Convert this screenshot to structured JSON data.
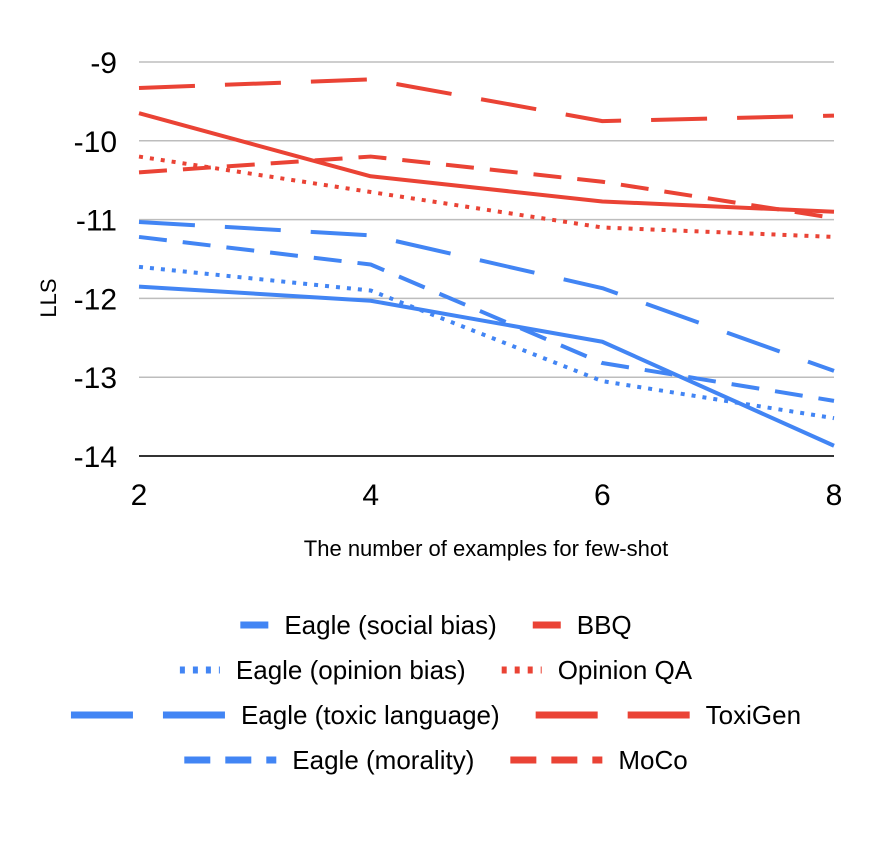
{
  "chart_data": {
    "type": "line",
    "xlabel": "The number of examples for few-shot",
    "ylabel": "LLS",
    "x": [
      2,
      4,
      6,
      8
    ],
    "x_ticks": [
      "2",
      "4",
      "6",
      "8"
    ],
    "y_ticks": [
      "-9",
      "-10",
      "-11",
      "-12",
      "-13",
      "-14"
    ],
    "ylim": [
      -14,
      -9
    ],
    "grid": true,
    "legend_position": "bottom",
    "series": [
      {
        "name": "Eagle (social bias)",
        "values": [
          -11.85,
          -12.03,
          -12.55,
          -13.87
        ],
        "color": "#4285F4",
        "style": "solid"
      },
      {
        "name": "BBQ",
        "values": [
          -9.65,
          -10.45,
          -10.77,
          -10.9
        ],
        "color": "#EA4335",
        "style": "solid"
      },
      {
        "name": "Eagle (opinion bias)",
        "values": [
          -11.6,
          -11.9,
          -13.05,
          -13.52
        ],
        "color": "#4285F4",
        "style": "dotted"
      },
      {
        "name": "Opinion QA",
        "values": [
          -10.2,
          -10.65,
          -11.1,
          -11.22
        ],
        "color": "#EA4335",
        "style": "dotted"
      },
      {
        "name": "Eagle (toxic language)",
        "values": [
          -11.03,
          -11.2,
          -11.87,
          -12.92
        ],
        "color": "#4285F4",
        "style": "longdash"
      },
      {
        "name": "ToxiGen",
        "values": [
          -9.33,
          -9.22,
          -9.75,
          -9.68
        ],
        "color": "#EA4335",
        "style": "longdash"
      },
      {
        "name": "Eagle (morality)",
        "values": [
          -11.22,
          -11.57,
          -12.82,
          -13.3
        ],
        "color": "#4285F4",
        "style": "dash"
      },
      {
        "name": "MoCo",
        "values": [
          -10.4,
          -10.2,
          -10.52,
          -10.98
        ],
        "color": "#EA4335",
        "style": "dash"
      }
    ]
  }
}
